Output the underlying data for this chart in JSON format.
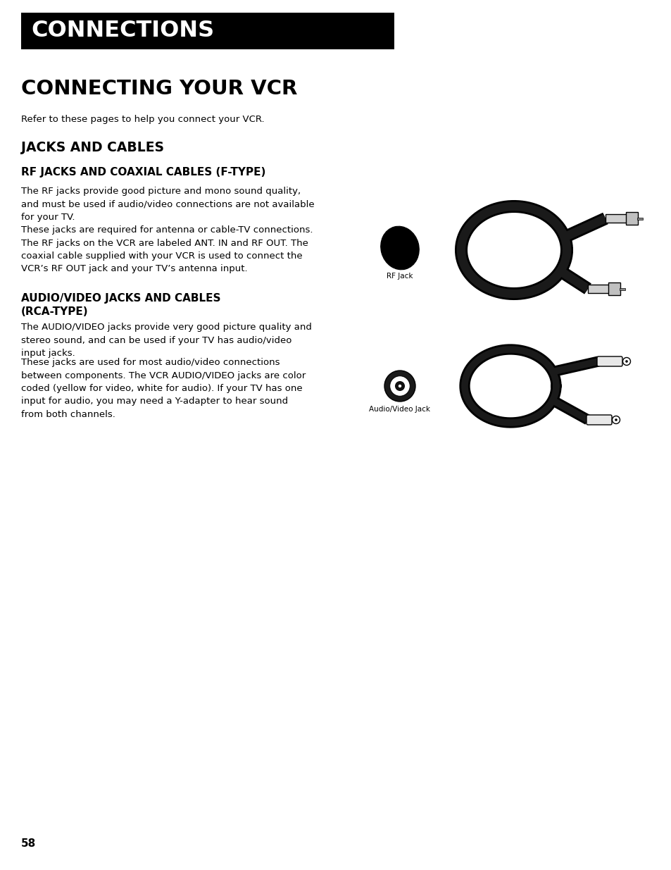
{
  "page_bg": "#ffffff",
  "header_bg": "#000000",
  "header_text": "CONNECTIONS",
  "header_text_color": "#ffffff",
  "section_title": "CONNECTING YOUR VCR",
  "intro_text": "Refer to these pages to help you connect your VCR.",
  "subsection1_title": "JACKS AND CABLES",
  "sub2_title": "RF JACKS AND COAXIAL CABLES (F-TYPE)",
  "rf_para1": "The RF jacks provide good picture and mono sound quality,\nand must be used if audio/video connections are not available\nfor your TV.",
  "rf_para2": "These jacks are required for antenna or cable-TV connections.\nThe RF jacks on the VCR are labeled ANT. IN and RF OUT. The\ncoaxial cable supplied with your VCR is used to connect the\nVCR’s RF OUT jack and your TV’s antenna input.",
  "sub3_title": "AUDIO/VIDEO JACKS AND CABLES\n(RCA-TYPE)",
  "av_para1": "The AUDIO/VIDEO jacks provide very good picture quality and\nstereo sound, and can be used if your TV has audio/video\ninput jacks.",
  "av_para2": "These jacks are used for most audio/video connections\nbetween components. The VCR AUDIO/VIDEO jacks are color\ncoded (yellow for video, white for audio). If your TV has one\ninput for audio, you may need a Y-adapter to hear sound\nfrom both channels.",
  "page_number": "58",
  "rf_jack_label": "RF Jack",
  "av_jack_label": "Audio/Video Jack"
}
